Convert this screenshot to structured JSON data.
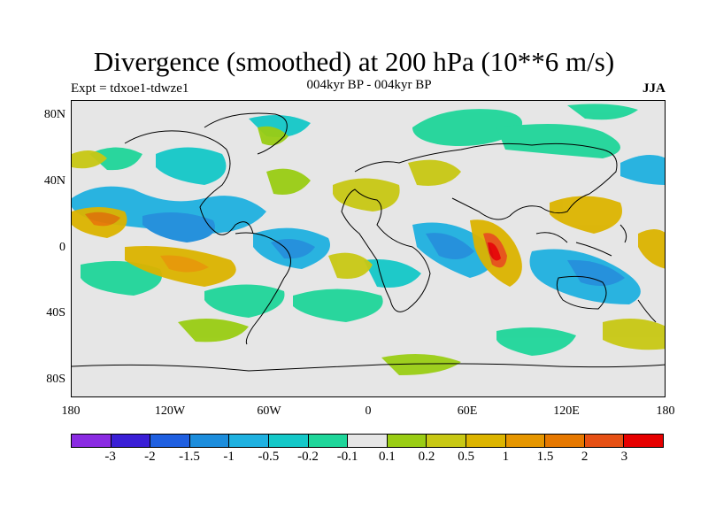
{
  "title": "Divergence (smoothed) at 200 hPa (10**6 m/s)",
  "experiment": "Expt = tdxoe1-tdwze1",
  "period": "004kyr BP - 004kyr BP",
  "season": "JJA",
  "lat_labels": [
    "80N",
    "40N",
    "0",
    "40S",
    "80S"
  ],
  "lon_labels": [
    "180",
    "120W",
    "60W",
    "0",
    "60E",
    "120E",
    "180"
  ],
  "colorbar": {
    "colors": [
      "#8a2be2",
      "#3a1fd6",
      "#1f5fe0",
      "#1c8ddc",
      "#1fb1e0",
      "#14c8c8",
      "#1fd69a",
      "#e6e6e6",
      "#9acd14",
      "#c8c814",
      "#dcb400",
      "#e69600",
      "#e67800",
      "#e65014",
      "#e60000"
    ],
    "labels": [
      "-3",
      "-2",
      "-1.5",
      "-1",
      "-0.5",
      "-0.2",
      "-0.1",
      "0.1",
      "0.2",
      "0.5",
      "1",
      "1.5",
      "2",
      "3"
    ]
  }
}
